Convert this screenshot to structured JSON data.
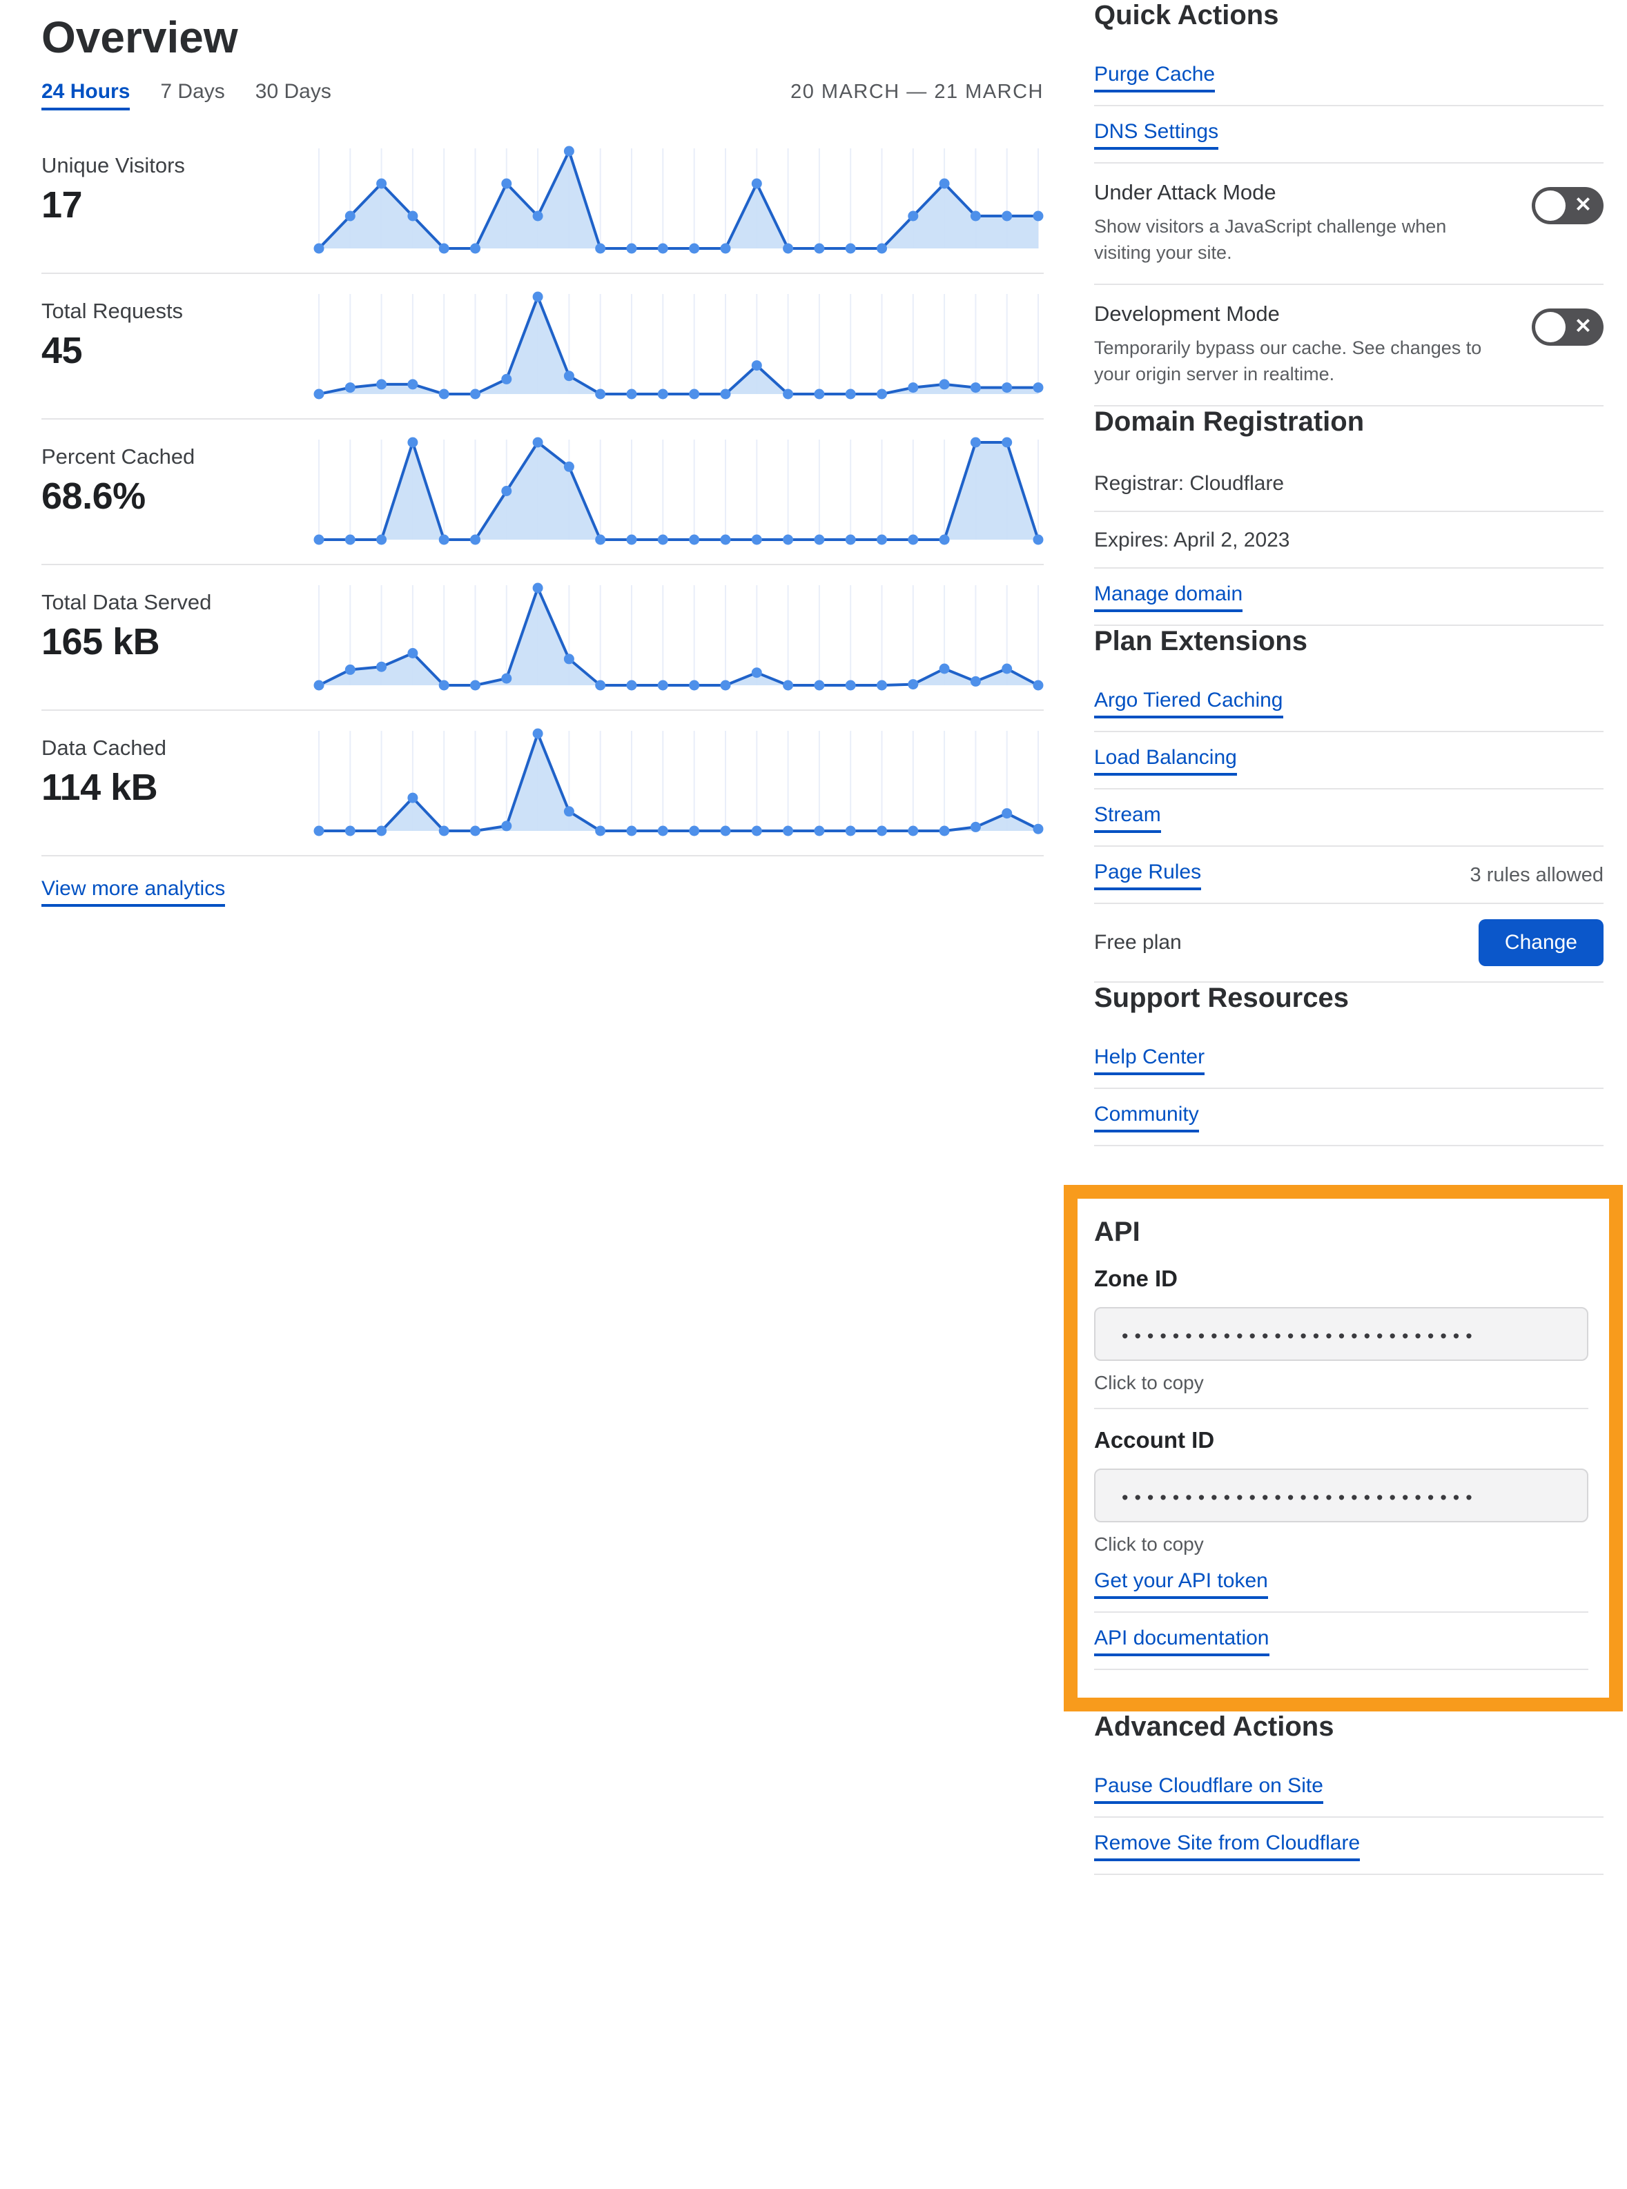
{
  "title": "Overview",
  "time_tabs": {
    "tab_24h": "24 Hours",
    "tab_7d": "7 Days",
    "tab_30d": "30 Days",
    "active": "24 Hours"
  },
  "date_range": "20 MARCH — 21 MARCH",
  "analytics": {
    "view_more_label": "View more analytics",
    "metrics": [
      {
        "label": "Unique Visitors",
        "value": "17"
      },
      {
        "label": "Total Requests",
        "value": "45"
      },
      {
        "label": "Percent Cached",
        "value": "68.6%"
      },
      {
        "label": "Total Data Served",
        "value": "165 kB"
      },
      {
        "label": "Data Cached",
        "value": "114 kB"
      }
    ]
  },
  "chart_data": [
    {
      "type": "area",
      "title": "Unique Visitors",
      "total": "17",
      "x_points": 24,
      "x_range": "20 MARCH — 21 MARCH (hourly)",
      "ymax": 3,
      "values": [
        0,
        1,
        2,
        1,
        0,
        0,
        2,
        1,
        3,
        0,
        0,
        0,
        0,
        0,
        2,
        0,
        0,
        0,
        0,
        1,
        2,
        1,
        1,
        1
      ],
      "grid": "vertical-only",
      "legend": "none"
    },
    {
      "type": "area",
      "title": "Total Requests",
      "total": "45",
      "x_points": 24,
      "x_range": "20 MARCH — 21 MARCH (hourly)",
      "ymax": 15,
      "values": [
        0,
        1,
        1.5,
        1.5,
        0,
        0,
        2.3,
        15,
        2.8,
        0,
        0,
        0,
        0,
        0,
        4.4,
        0,
        0,
        0,
        0,
        1,
        1.5,
        1,
        1,
        1
      ],
      "grid": "vertical-only",
      "legend": "none"
    },
    {
      "type": "area",
      "title": "Percent Cached",
      "total": "68.6%",
      "x_points": 24,
      "x_range": "20 MARCH — 21 MARCH (hourly)",
      "ymax": 100,
      "values": [
        0,
        0,
        0,
        100,
        0,
        0,
        50,
        100,
        75,
        0,
        0,
        0,
        0,
        0,
        0,
        0,
        0,
        0,
        0,
        0,
        0,
        100,
        100,
        0
      ],
      "grid": "vertical-only",
      "legend": "none"
    },
    {
      "type": "area",
      "title": "Total Data Served",
      "total": "165 kB",
      "x_points": 24,
      "x_range": "20 MARCH — 21 MARCH (hourly)",
      "ymax": 10,
      "values": [
        0,
        1.6,
        1.9,
        3.3,
        0,
        0,
        0.7,
        10,
        2.7,
        0,
        0,
        0,
        0,
        0,
        1.3,
        0,
        0,
        0,
        0,
        0.1,
        1.7,
        0.4,
        1.7,
        0
      ],
      "grid": "vertical-only",
      "legend": "none"
    },
    {
      "type": "area",
      "title": "Data Cached",
      "total": "114 kB",
      "x_points": 24,
      "x_range": "20 MARCH — 21 MARCH (hourly)",
      "ymax": 10,
      "values": [
        0,
        0,
        0,
        3.4,
        0,
        0,
        0.5,
        10,
        2,
        0,
        0,
        0,
        0,
        0,
        0,
        0,
        0,
        0,
        0,
        0,
        0,
        0.4,
        1.8,
        0.2
      ],
      "grid": "vertical-only",
      "legend": "none"
    }
  ],
  "sidebar": {
    "quick_actions": {
      "heading": "Quick Actions",
      "purge_cache": "Purge Cache",
      "dns_settings": "DNS Settings",
      "toggles": [
        {
          "label": "Under Attack Mode",
          "description": "Show visitors a JavaScript challenge when visiting your site.",
          "state": "off"
        },
        {
          "label": "Development Mode",
          "description": "Temporarily bypass our cache. See changes to your origin server in realtime.",
          "state": "off"
        }
      ]
    },
    "domain_registration": {
      "heading": "Domain Registration",
      "registrar": "Registrar: Cloudflare",
      "expires": "Expires: April 2, 2023",
      "manage_link": "Manage domain"
    },
    "plan_extensions": {
      "heading": "Plan Extensions",
      "argo": "Argo Tiered Caching",
      "load_balancing": "Load Balancing",
      "stream": "Stream",
      "page_rules": "Page Rules",
      "page_rules_note": "3 rules allowed",
      "plan_label": "Free plan",
      "change_button": "Change"
    },
    "support_resources": {
      "heading": "Support Resources",
      "help_center": "Help Center",
      "community": "Community"
    },
    "api": {
      "heading": "API",
      "zone_id_label": "Zone ID",
      "zone_id_masked": "••••••••••••••••••••••••••••",
      "zone_id_hint": "Click to copy",
      "account_id_label": "Account ID",
      "account_id_masked": "••••••••••••••••••••••••••••",
      "account_id_hint": "Click to copy",
      "get_token_link": "Get your API token",
      "docs_link": "API documentation"
    },
    "advanced_actions": {
      "heading": "Advanced Actions",
      "pause_link": "Pause Cloudflare on Site",
      "remove_link": "Remove Site from Cloudflare"
    }
  },
  "icons": {
    "toggle_off_x": "✕"
  },
  "colors": {
    "link_blue": "#0051c3",
    "button_blue": "#0b57ca",
    "accent_orange": "#f89b1c",
    "toggle_off_bg": "#515154",
    "chart_line": "#1f62c9",
    "chart_dot": "#4e90ea",
    "chart_fill": "#c9def7",
    "chart_grid": "#e9eef9",
    "divider": "#e4e4e6"
  }
}
